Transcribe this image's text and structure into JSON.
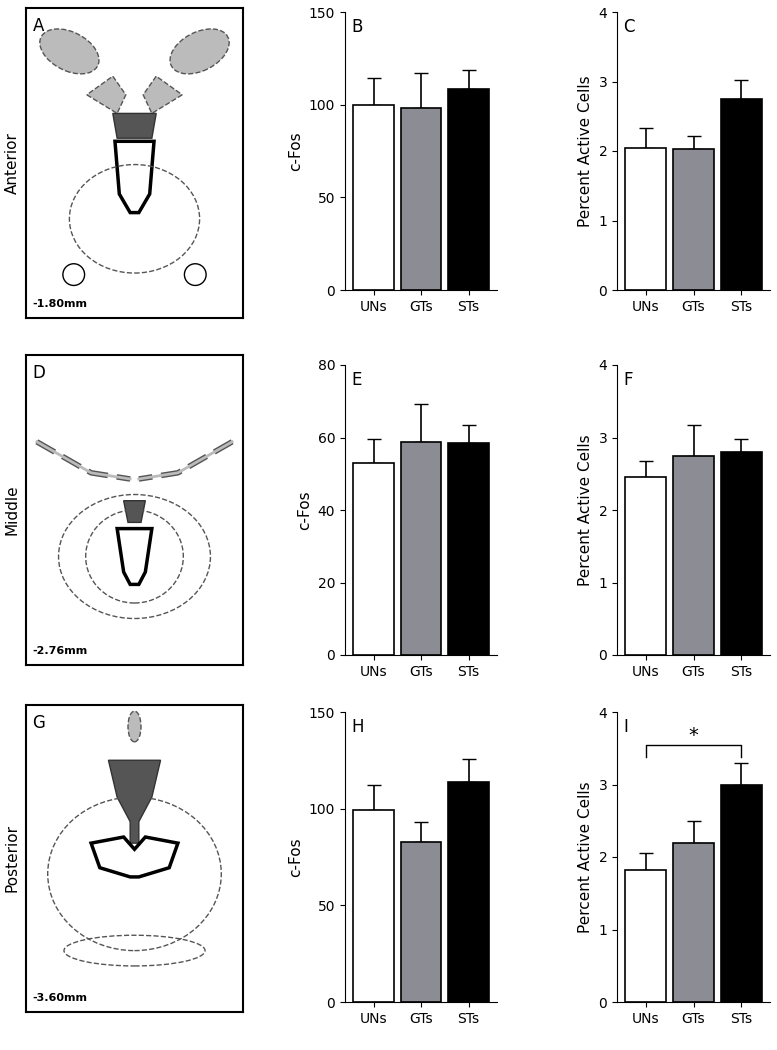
{
  "chart_data": [
    {
      "type": "bar",
      "panel": "B",
      "ylabel": "c-Fos",
      "categories": [
        "UNs",
        "GTs",
        "STs"
      ],
      "values": [
        100,
        98,
        108.5
      ],
      "errors": [
        14.5,
        19,
        10
      ],
      "colors": [
        "#ffffff",
        "#8c8c94",
        "#000000"
      ],
      "ylim": [
        0,
        150
      ],
      "yticks": [
        0,
        50,
        100,
        150
      ]
    },
    {
      "type": "bar",
      "panel": "C",
      "ylabel": "Percent Active Cells",
      "categories": [
        "UNs",
        "GTs",
        "STs"
      ],
      "values": [
        2.05,
        2.03,
        2.75
      ],
      "errors": [
        0.28,
        0.18,
        0.27
      ],
      "colors": [
        "#ffffff",
        "#8c8c94",
        "#000000"
      ],
      "ylim": [
        0,
        4
      ],
      "yticks": [
        0,
        1,
        2,
        3,
        4
      ]
    },
    {
      "type": "bar",
      "panel": "E",
      "ylabel": "c-Fos",
      "categories": [
        "UNs",
        "GTs",
        "STs"
      ],
      "values": [
        53,
        58.7,
        58.5
      ],
      "errors": [
        6.5,
        10.5,
        5
      ],
      "colors": [
        "#ffffff",
        "#8c8c94",
        "#000000"
      ],
      "ylim": [
        0,
        80
      ],
      "yticks": [
        0,
        20,
        40,
        60,
        80
      ]
    },
    {
      "type": "bar",
      "panel": "F",
      "ylabel": "Percent Active Cells",
      "categories": [
        "UNs",
        "GTs",
        "STs"
      ],
      "values": [
        2.45,
        2.75,
        2.8
      ],
      "errors": [
        0.22,
        0.42,
        0.18
      ],
      "colors": [
        "#ffffff",
        "#8c8c94",
        "#000000"
      ],
      "ylim": [
        0,
        4
      ],
      "yticks": [
        0,
        1,
        2,
        3,
        4
      ]
    },
    {
      "type": "bar",
      "panel": "H",
      "ylabel": "c-Fos",
      "categories": [
        "UNs",
        "GTs",
        "STs"
      ],
      "values": [
        99.5,
        83,
        114
      ],
      "errors": [
        12.5,
        10,
        11.5
      ],
      "colors": [
        "#ffffff",
        "#8c8c94",
        "#000000"
      ],
      "ylim": [
        0,
        150
      ],
      "yticks": [
        0,
        50,
        100,
        150
      ]
    },
    {
      "type": "bar",
      "panel": "I",
      "ylabel": "Percent Active Cells",
      "categories": [
        "UNs",
        "GTs",
        "STs"
      ],
      "values": [
        1.82,
        2.2,
        3.0
      ],
      "errors": [
        0.23,
        0.3,
        0.3
      ],
      "colors": [
        "#ffffff",
        "#8c8c94",
        "#000000"
      ],
      "ylim": [
        0,
        4
      ],
      "yticks": [
        0,
        1,
        2,
        3,
        4
      ],
      "annotations": [
        {
          "text": "*",
          "from": "UNs",
          "to": "STs"
        }
      ]
    }
  ],
  "diagrams": [
    {
      "panel": "A",
      "row_label": "Anterior",
      "coordinate": "-1.80mm"
    },
    {
      "panel": "D",
      "row_label": "Middle",
      "coordinate": "-2.76mm"
    },
    {
      "panel": "G",
      "row_label": "Posterior",
      "coordinate": "-3.60mm"
    }
  ]
}
